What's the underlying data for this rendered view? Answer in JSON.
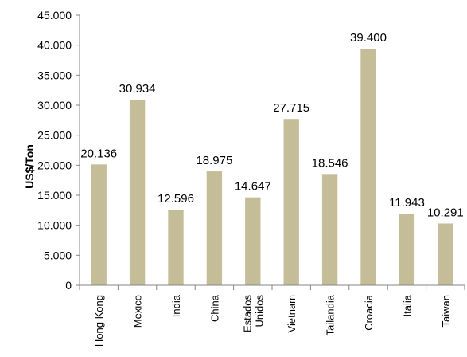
{
  "chart_data": {
    "type": "bar",
    "categories": [
      "Hong Kong",
      "Mexico",
      "India",
      "China",
      "Estados Unidos",
      "Vietnam",
      "Tailandia",
      "Croacia",
      "Italia",
      "Taiwan"
    ],
    "category_lines": [
      [
        "Hong Kong"
      ],
      [
        "Mexico"
      ],
      [
        "India"
      ],
      [
        "China"
      ],
      [
        "Estados",
        "Unidos"
      ],
      [
        "Vietnam"
      ],
      [
        "Tailandia"
      ],
      [
        "Croacia"
      ],
      [
        "Italia"
      ],
      [
        "Taiwan"
      ]
    ],
    "values": [
      20136,
      30934,
      12596,
      18975,
      14647,
      27715,
      18546,
      39400,
      11943,
      10291
    ],
    "value_labels": [
      "20.136",
      "30.934",
      "12.596",
      "18.975",
      "14.647",
      "27.715",
      "18.546",
      "39.400",
      "11.943",
      "10.291"
    ],
    "title": "",
    "xlabel": "",
    "ylabel": "US$/Ton",
    "ylim": [
      0,
      45000
    ],
    "yticks": [
      0,
      5000,
      10000,
      15000,
      20000,
      25000,
      30000,
      35000,
      40000,
      45000
    ],
    "ytick_labels": [
      "0",
      "5.000",
      "10.000",
      "15.000",
      "20.000",
      "25.000",
      "30.000",
      "35.000",
      "40.000",
      "45.000"
    ],
    "grid": false,
    "legend": "none",
    "bar_color": "#C4BD97"
  }
}
